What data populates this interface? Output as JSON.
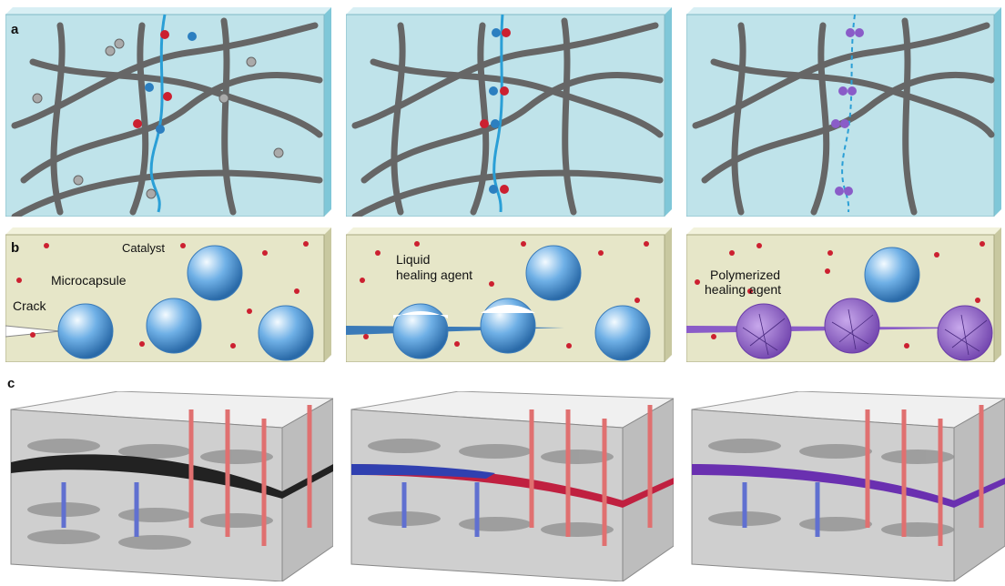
{
  "figure": {
    "row_a": {
      "letter": "a"
    },
    "row_b": {
      "letter": "b",
      "labels": {
        "catalyst": "Catalyst",
        "microcapsule": "Microcapsule",
        "crack": "Crack",
        "liquid_line1": "Liquid",
        "liquid_line2": "healing agent",
        "poly_line1": "Polymerized",
        "poly_line2": "healing agent"
      }
    },
    "row_c": {
      "letter": "c"
    }
  },
  "colors": {
    "matrix_blue": "#bfe3ea",
    "matrix_tan": "#e6e6c8",
    "chain_grey": "#666666",
    "crack_blue": "#2a9fd6",
    "red_atom": "#cc2030",
    "blue_atom": "#2c7fc0",
    "purple": "#8a5cc8",
    "capsule_blue": "#6fb0e6",
    "vessel_red": "#e07070",
    "vessel_blue": "#6070d0"
  }
}
